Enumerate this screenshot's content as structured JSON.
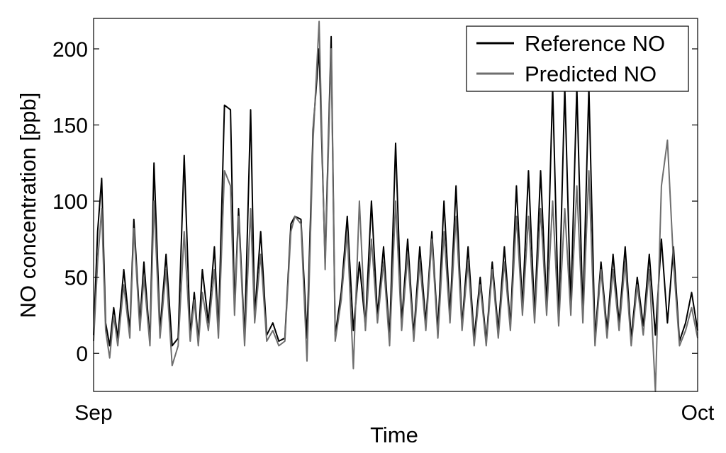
{
  "chart_data": {
    "type": "line",
    "title": "",
    "xlabel": "Time",
    "ylabel": "NO concentration [ppb]",
    "x_tick_labels": [
      "Sep",
      "Oct"
    ],
    "xlim": [
      0,
      30
    ],
    "ylim": [
      -25,
      220
    ],
    "yticks": [
      0,
      50,
      100,
      150,
      200
    ],
    "grid": false,
    "legend_position": "top-right",
    "series": [
      {
        "name": "Reference NO",
        "color": "#000000",
        "x": [
          0,
          0.2,
          0.4,
          0.6,
          0.8,
          1.0,
          1.2,
          1.5,
          1.8,
          2.0,
          2.3,
          2.5,
          2.8,
          3.0,
          3.3,
          3.6,
          3.9,
          4.2,
          4.5,
          4.8,
          5.0,
          5.2,
          5.4,
          5.7,
          6.0,
          6.2,
          6.5,
          6.8,
          7.0,
          7.2,
          7.5,
          7.8,
          8.0,
          8.3,
          8.6,
          8.9,
          9.2,
          9.5,
          9.8,
          10.0,
          10.3,
          10.6,
          10.9,
          11.2,
          11.5,
          11.8,
          12.0,
          12.3,
          12.6,
          12.9,
          13.2,
          13.5,
          13.8,
          14.1,
          14.4,
          14.7,
          15.0,
          15.3,
          15.6,
          15.9,
          16.2,
          16.5,
          16.8,
          17.1,
          17.4,
          17.7,
          18.0,
          18.3,
          18.6,
          18.9,
          19.2,
          19.5,
          19.8,
          20.1,
          20.4,
          20.7,
          21.0,
          21.3,
          21.6,
          21.9,
          22.2,
          22.5,
          22.8,
          23.1,
          23.4,
          23.7,
          24.0,
          24.3,
          24.6,
          24.9,
          25.2,
          25.5,
          25.8,
          26.1,
          26.4,
          26.7,
          27.0,
          27.3,
          27.6,
          27.9,
          28.2,
          28.5,
          28.8,
          29.1,
          29.4,
          29.7,
          30.0
        ],
        "values": [
          12,
          80,
          115,
          20,
          5,
          30,
          10,
          55,
          15,
          88,
          20,
          60,
          8,
          125,
          15,
          65,
          5,
          10,
          130,
          12,
          40,
          8,
          55,
          20,
          70,
          15,
          163,
          160,
          30,
          95,
          10,
          160,
          25,
          80,
          12,
          20,
          8,
          10,
          85,
          90,
          88,
          10,
          147,
          200,
          60,
          208,
          12,
          40,
          90,
          15,
          60,
          18,
          100,
          25,
          70,
          10,
          138,
          20,
          75,
          12,
          70,
          20,
          80,
          15,
          100,
          25,
          110,
          18,
          70,
          10,
          50,
          8,
          60,
          15,
          70,
          18,
          110,
          30,
          120,
          25,
          120,
          30,
          175,
          20,
          175,
          30,
          175,
          25,
          175,
          10,
          60,
          15,
          65,
          20,
          70,
          10,
          50,
          18,
          65,
          12,
          75,
          20,
          70,
          8,
          20,
          40,
          15
        ]
      },
      {
        "name": "Predicted NO",
        "color": "#6e6e6e",
        "x": [
          0,
          0.2,
          0.4,
          0.6,
          0.8,
          1.0,
          1.2,
          1.5,
          1.8,
          2.0,
          2.3,
          2.5,
          2.8,
          3.0,
          3.3,
          3.6,
          3.9,
          4.2,
          4.5,
          4.8,
          5.0,
          5.2,
          5.4,
          5.7,
          6.0,
          6.2,
          6.5,
          6.8,
          7.0,
          7.2,
          7.5,
          7.8,
          8.0,
          8.3,
          8.6,
          8.9,
          9.2,
          9.5,
          9.8,
          10.0,
          10.3,
          10.6,
          10.9,
          11.2,
          11.5,
          11.8,
          12.0,
          12.3,
          12.6,
          12.9,
          13.2,
          13.5,
          13.8,
          14.1,
          14.4,
          14.7,
          15.0,
          15.3,
          15.6,
          15.9,
          16.2,
          16.5,
          16.8,
          17.1,
          17.4,
          17.7,
          18.0,
          18.3,
          18.6,
          18.9,
          19.2,
          19.5,
          19.8,
          20.1,
          20.4,
          20.7,
          21.0,
          21.3,
          21.6,
          21.9,
          22.2,
          22.5,
          22.8,
          23.1,
          23.4,
          23.7,
          24.0,
          24.3,
          24.6,
          24.9,
          25.2,
          25.5,
          25.8,
          26.1,
          26.4,
          26.7,
          27.0,
          27.3,
          27.6,
          27.9,
          28.2,
          28.5,
          28.8,
          29.1,
          29.4,
          29.7,
          30.0
        ],
        "values": [
          8,
          60,
          95,
          15,
          -3,
          25,
          5,
          45,
          10,
          82,
          15,
          50,
          5,
          100,
          10,
          55,
          -8,
          5,
          80,
          8,
          35,
          5,
          40,
          15,
          55,
          10,
          120,
          110,
          25,
          90,
          5,
          95,
          20,
          65,
          8,
          15,
          5,
          8,
          80,
          90,
          85,
          -5,
          140,
          218,
          55,
          200,
          8,
          35,
          80,
          -10,
          100,
          15,
          75,
          20,
          60,
          5,
          100,
          15,
          65,
          8,
          60,
          15,
          75,
          10,
          80,
          20,
          90,
          15,
          60,
          5,
          45,
          5,
          55,
          10,
          60,
          15,
          90,
          25,
          90,
          20,
          95,
          25,
          100,
          18,
          95,
          25,
          110,
          20,
          120,
          5,
          55,
          10,
          55,
          15,
          60,
          5,
          45,
          12,
          55,
          -25,
          110,
          140,
          60,
          5,
          15,
          30,
          10
        ]
      }
    ]
  }
}
